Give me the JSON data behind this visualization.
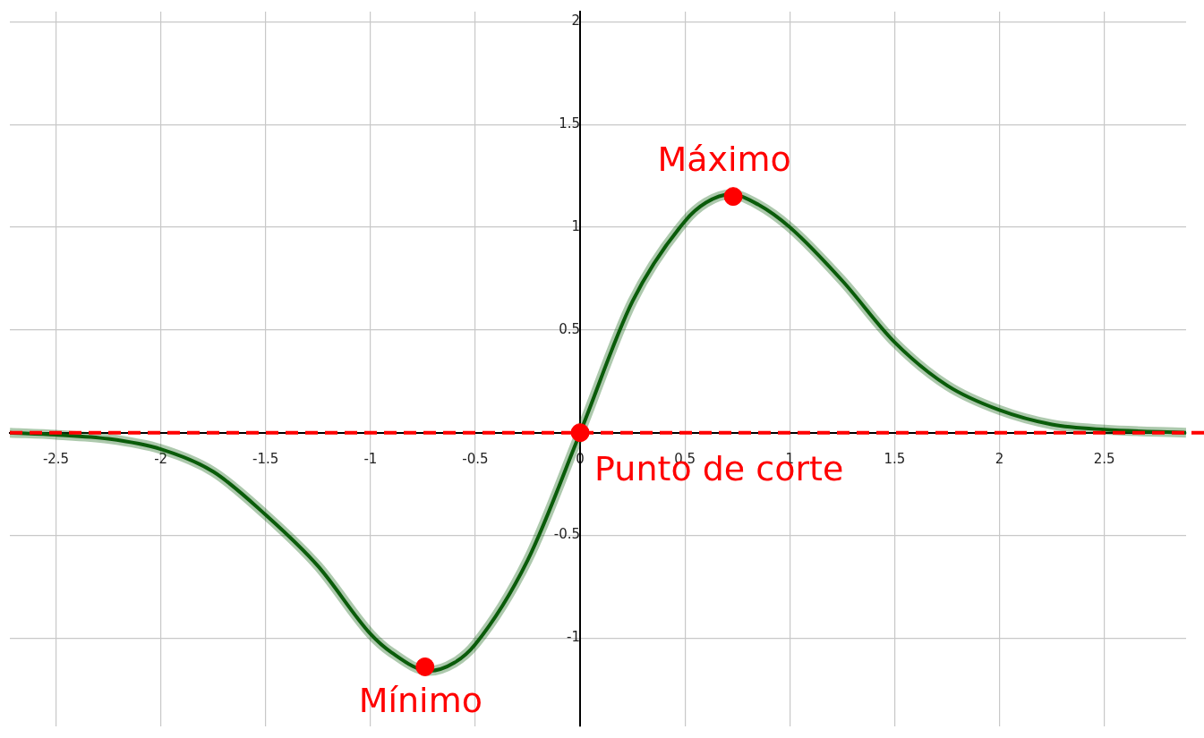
{
  "chart_data": {
    "type": "line",
    "xlim": [
      -2.72,
      2.89
    ],
    "ylim": [
      -1.43,
      2.05
    ],
    "xticks": [
      -2.5,
      -2,
      -1.5,
      -1,
      -0.5,
      0,
      0.5,
      1,
      1.5,
      2,
      2.5
    ],
    "yticks": [
      -1,
      -0.5,
      {
        "value": 0,
        "label": null
      },
      0.5,
      1,
      1.5,
      2
    ],
    "grid": true,
    "legend": false,
    "series": [
      {
        "color": "#0a5c0a",
        "marker": "none",
        "x": [
          -2.72,
          -2.5,
          -2.25,
          -2,
          -1.75,
          -1.5,
          -1.25,
          -1,
          -0.9,
          -0.72,
          -0.6,
          -0.5,
          -0.25,
          0,
          0.25,
          0.5,
          0.6,
          0.72,
          0.85,
          1,
          1.25,
          1.5,
          1.75,
          2,
          2.25,
          2.5,
          2.89
        ],
        "values": [
          0,
          -0.01,
          -0.03,
          -0.08,
          -0.19,
          -0.4,
          -0.65,
          -0.98,
          -1.07,
          -1.16,
          -1.12,
          -1.03,
          -0.62,
          0,
          0.64,
          1.03,
          1.12,
          1.16,
          1.11,
          1.0,
          0.74,
          0.44,
          0.23,
          0.11,
          0.04,
          0.015,
          0
        ]
      },
      {
        "type": "scatter",
        "color": "#ff0000",
        "marker": "circle",
        "x": [
          -0.74,
          0,
          0.73
        ],
        "values": [
          -1.14,
          0,
          1.15
        ]
      }
    ],
    "ref_lines": [
      {
        "axis": "y",
        "value": 0,
        "color": "#ff0000",
        "line_style": "dashed"
      }
    ],
    "annotations": [
      {
        "text": "Máximo",
        "x": 0.73,
        "y": 1.15
      },
      {
        "text": "Punto de corte",
        "x": 0,
        "y": 0
      },
      {
        "text": "Mínimo",
        "x": -0.74,
        "y": -1.14
      }
    ]
  }
}
